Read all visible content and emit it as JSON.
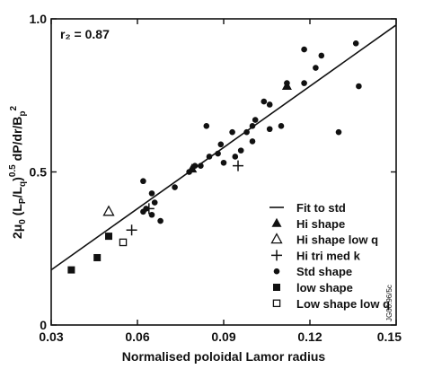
{
  "chart_data": {
    "type": "scatter",
    "xlabel": "Normalised poloidal Lamor radius",
    "ylabel_parts": {
      "prefix": "2μ",
      "prefix_sub": "0",
      "l_open": " (L",
      "l1_sub": "P",
      "slash": "/L",
      "l2_sub": "q",
      "exp_close": ")",
      "exponent": "0.5",
      "middle": " dP/dr/B",
      "bp_sub": "p",
      "bp_sup": "2"
    },
    "xlim": [
      0.03,
      0.15
    ],
    "ylim": [
      0.0,
      1.0
    ],
    "x_ticks": [
      0.03,
      0.06,
      0.09,
      0.12,
      0.15
    ],
    "x_tick_labels": [
      "0.03",
      "0.06",
      "0.09",
      "0.12",
      "0.15"
    ],
    "y_ticks": [
      0,
      0.5,
      1.0
    ],
    "y_tick_labels": [
      "0",
      "0.5",
      "1.0"
    ],
    "annotation": "r₂ = 0.87",
    "side_code": "JG00.96/5c",
    "fit_line": {
      "name": "Fit to std",
      "x": [
        0.03,
        0.15
      ],
      "y": [
        0.18,
        0.98
      ]
    },
    "series": [
      {
        "name": "Hi shape",
        "marker": "filled-triangle",
        "points": [
          [
            0.079,
            0.51
          ],
          [
            0.112,
            0.78
          ]
        ]
      },
      {
        "name": "Hi shape low q",
        "marker": "open-triangle",
        "points": [
          [
            0.05,
            0.37
          ]
        ]
      },
      {
        "name": "Hi tri med k",
        "marker": "plus",
        "points": [
          [
            0.058,
            0.31
          ],
          [
            0.064,
            0.38
          ],
          [
            0.095,
            0.52
          ]
        ]
      },
      {
        "name": "Std shape",
        "marker": "filled-circle",
        "points": [
          [
            0.062,
            0.37
          ],
          [
            0.063,
            0.38
          ],
          [
            0.065,
            0.36
          ],
          [
            0.066,
            0.4
          ],
          [
            0.065,
            0.43
          ],
          [
            0.068,
            0.34
          ],
          [
            0.062,
            0.47
          ],
          [
            0.073,
            0.45
          ],
          [
            0.078,
            0.5
          ],
          [
            0.08,
            0.52
          ],
          [
            0.082,
            0.52
          ],
          [
            0.085,
            0.55
          ],
          [
            0.088,
            0.56
          ],
          [
            0.09,
            0.53
          ],
          [
            0.094,
            0.55
          ],
          [
            0.096,
            0.57
          ],
          [
            0.084,
            0.65
          ],
          [
            0.089,
            0.59
          ],
          [
            0.093,
            0.63
          ],
          [
            0.098,
            0.63
          ],
          [
            0.1,
            0.65
          ],
          [
            0.101,
            0.67
          ],
          [
            0.1,
            0.6
          ],
          [
            0.104,
            0.73
          ],
          [
            0.106,
            0.72
          ],
          [
            0.106,
            0.64
          ],
          [
            0.11,
            0.65
          ],
          [
            0.112,
            0.79
          ],
          [
            0.118,
            0.79
          ],
          [
            0.122,
            0.84
          ],
          [
            0.124,
            0.88
          ],
          [
            0.118,
            0.9
          ],
          [
            0.13,
            0.63
          ],
          [
            0.136,
            0.92
          ],
          [
            0.137,
            0.78
          ]
        ]
      },
      {
        "name": "low shape",
        "marker": "filled-square",
        "points": [
          [
            0.037,
            0.18
          ],
          [
            0.046,
            0.22
          ],
          [
            0.05,
            0.29
          ]
        ]
      },
      {
        "name": "Low shape low q",
        "marker": "open-square",
        "points": [
          [
            0.055,
            0.27
          ]
        ]
      }
    ]
  }
}
